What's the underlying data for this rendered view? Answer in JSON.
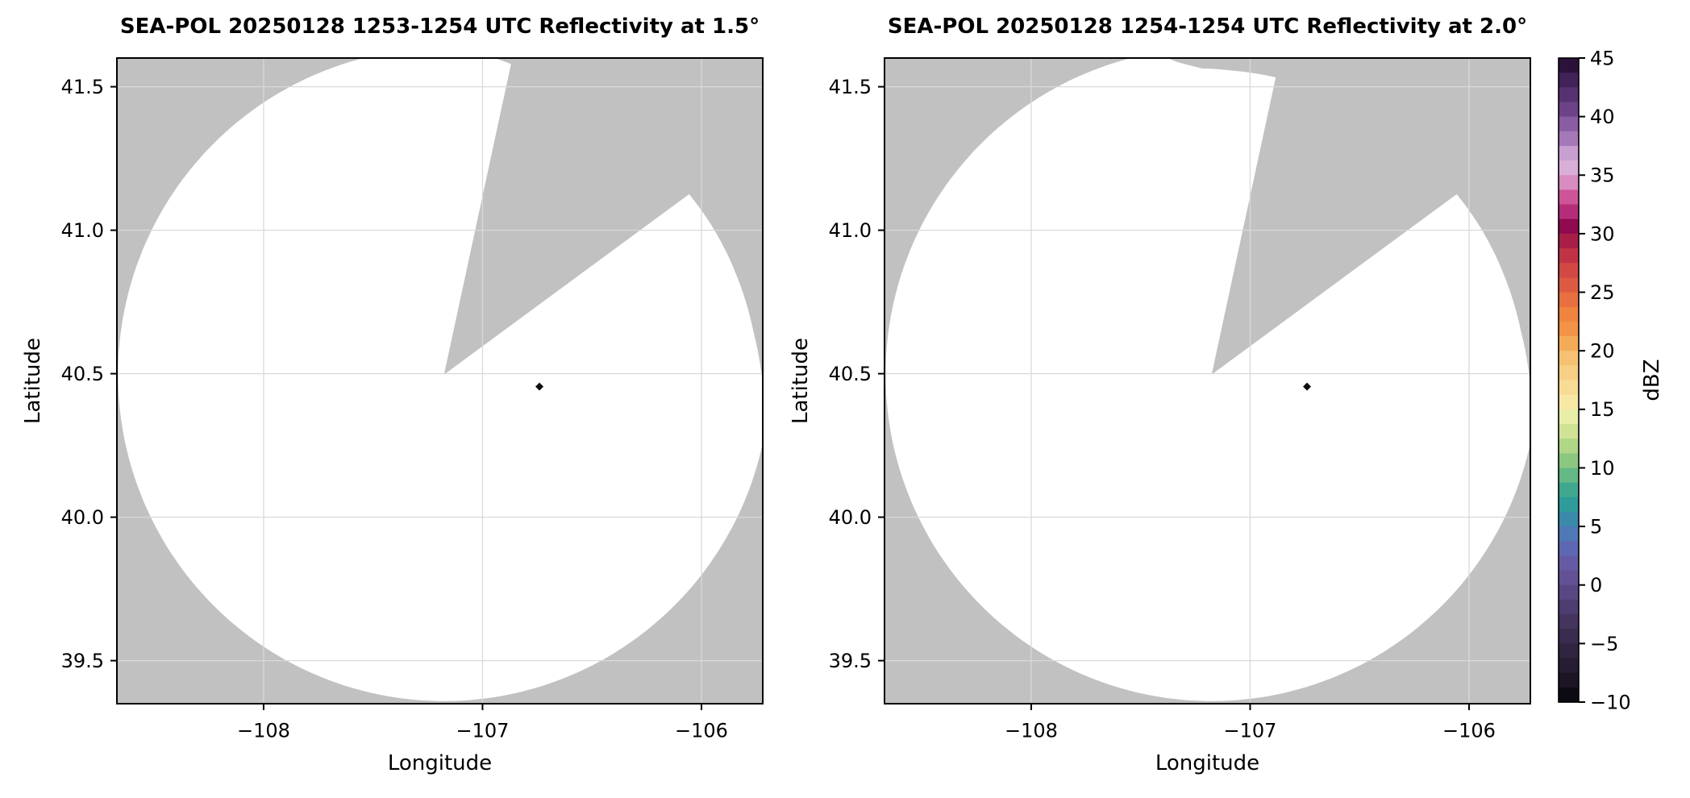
{
  "chart_data": {
    "type": "heatmap",
    "subtype": "radar-ppi-map-pair",
    "style": {
      "outside_fill": "#c1c1c1",
      "scan_fill": "#ffffff",
      "grid_color": "#d9d9d9",
      "border_color": "#000000",
      "background": "#ffffff"
    },
    "shared_axes": {
      "xlim": [
        -108.67,
        -105.72
      ],
      "ylim": [
        39.35,
        41.6
      ],
      "xtick_values": [
        -108,
        -107,
        -106
      ],
      "xtick_labels": [
        "−108",
        "−107",
        "−106"
      ],
      "ytick_values": [
        41.5,
        41.0,
        40.5,
        40.0,
        39.5
      ],
      "ytick_labels": [
        "41.5",
        "41.0",
        "40.5",
        "40.0",
        "39.5"
      ],
      "grid": true
    },
    "panels": [
      {
        "title": "SEA-POL 20250128 1253-1254 UTC Reflectivity at 1.5°",
        "elevation_deg": 1.5,
        "xlabel": "Longitude",
        "ylabel": "Latitude",
        "radar_lon": -107.176,
        "radar_lat": 40.497,
        "max_range_deg_lon": 1.489,
        "max_range_deg_lat": 1.138,
        "missing_sector_az_deg": [
          12.2,
          53.7
        ],
        "range_profile_az_frac": [
          [
            53.7,
            0.933
          ],
          [
            62,
            0.94
          ],
          [
            72,
            0.948
          ],
          [
            82,
            0.958
          ],
          [
            90,
            0.974
          ],
          [
            96,
            1.0
          ],
          [
            346,
            1.0
          ],
          [
            352,
            1.0
          ],
          [
            358,
            1.0
          ],
          [
            364,
            0.996
          ],
          [
            372.2,
            0.973
          ]
        ],
        "echo": {
          "lon": -106.74,
          "lat": 40.455,
          "approx_dbz": -7,
          "color": "#0d0d0d"
        }
      },
      {
        "title": "SEA-POL 20250128 1254-1254 UTC Reflectivity at 2.0°",
        "elevation_deg": 2.0,
        "xlabel": "Longitude",
        "ylabel": "Latitude",
        "radar_lon": -107.176,
        "radar_lat": 40.497,
        "max_range_deg_lon": 1.489,
        "max_range_deg_lat": 1.138,
        "missing_sector_az_deg": [
          12.2,
          53.7
        ],
        "range_profile_az_frac": [
          [
            53.7,
            0.933
          ],
          [
            62,
            0.94
          ],
          [
            72,
            0.948
          ],
          [
            82,
            0.958
          ],
          [
            90,
            0.974
          ],
          [
            96,
            1.0
          ],
          [
            346,
            1.0
          ],
          [
            350,
            0.998
          ],
          [
            354,
            0.96
          ],
          [
            358,
            0.938
          ],
          [
            364,
            0.933
          ],
          [
            372.2,
            0.931
          ]
        ],
        "echo": {
          "lon": -106.74,
          "lat": 40.455,
          "approx_dbz": -7,
          "color": "#0d0d0d"
        }
      }
    ],
    "colorbar": {
      "label": "dBZ",
      "vmin": -10,
      "vmax": 45,
      "tick_values": [
        45,
        40,
        35,
        30,
        25,
        20,
        15,
        10,
        5,
        0,
        -5,
        -10
      ],
      "tick_labels": [
        "45",
        "40",
        "35",
        "30",
        "25",
        "20",
        "15",
        "10",
        "5",
        "0",
        "−5",
        "−10"
      ],
      "band_step_dbz": 1.25,
      "band_colors_top_to_bottom": [
        "#2b123b",
        "#412259",
        "#573270",
        "#6d4286",
        "#8a5ca4",
        "#a578b8",
        "#c89fd0",
        "#d9aed7",
        "#d88cc0",
        "#cd5597",
        "#b52d78",
        "#8f0a4f",
        "#a81e47",
        "#c03345",
        "#d24845",
        "#dd5a42",
        "#e76f40",
        "#ee8440",
        "#f29347",
        "#f4ab58",
        "#f6c173",
        "#f7cf85",
        "#f8dc96",
        "#f8e8a6",
        "#e9edaa",
        "#cfe295",
        "#b0d687",
        "#8cc782",
        "#64b986",
        "#41a78f",
        "#2f9b9b",
        "#3b8aab",
        "#4f78b6",
        "#5e68b2",
        "#655ba5",
        "#625295",
        "#594783",
        "#4e3d70",
        "#44345e",
        "#3a2c4e",
        "#302540",
        "#261d32",
        "#1b1524",
        "#0e0a14"
      ]
    }
  }
}
